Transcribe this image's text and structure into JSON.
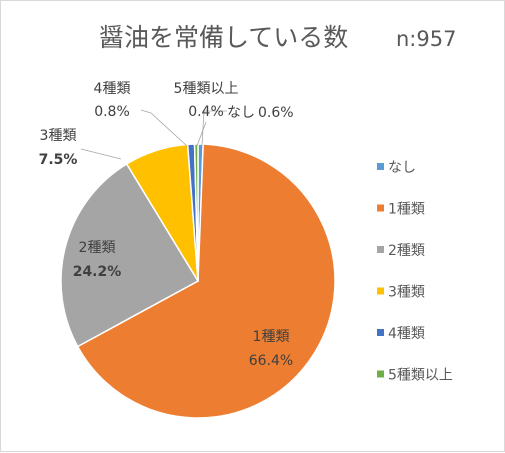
{
  "chart_data": {
    "type": "pie",
    "title": "醤油を常備している数",
    "sample_size_label": "n:957",
    "series": [
      {
        "name": "なし",
        "value": 0.6,
        "label": "0.6%",
        "color": "#5B9BD5",
        "bold": false
      },
      {
        "name": "1種類",
        "value": 66.4,
        "label": "66.4%",
        "color": "#ED7D31",
        "bold": false
      },
      {
        "name": "2種類",
        "value": 24.2,
        "label": "24.2%",
        "color": "#A5A5A5",
        "bold": true
      },
      {
        "name": "3種類",
        "value": 7.5,
        "label": "7.5%",
        "color": "#FFC000",
        "bold": true
      },
      {
        "name": "4種類",
        "value": 0.8,
        "label": "0.8%",
        "color": "#4472C4",
        "bold": false
      },
      {
        "name": "5種類以上",
        "value": 0.4,
        "label": "0.4%",
        "color": "#70AD47",
        "bold": false
      }
    ],
    "legend_position": "right",
    "start_angle_deg": 0,
    "direction": "clockwise"
  }
}
